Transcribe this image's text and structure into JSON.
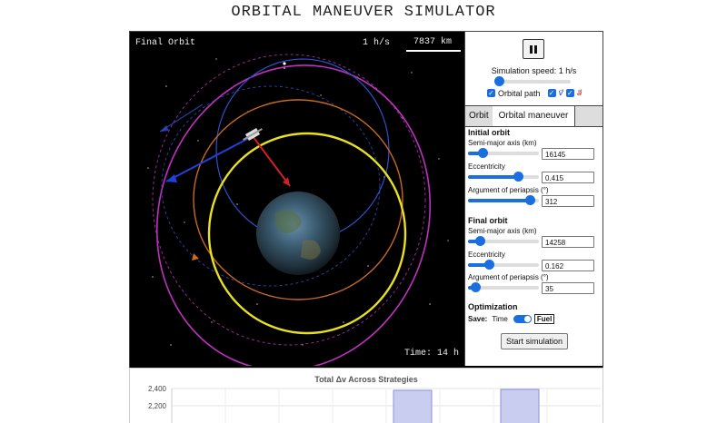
{
  "page": {
    "title": "ORBITAL MANEUVER SIMULATOR"
  },
  "canvas": {
    "label": "Final Orbit",
    "speed": "1 h/s",
    "scale": "7837 km",
    "time": "Time: 14 h"
  },
  "controls": {
    "pause_icon": "pause-icon",
    "speed_label": "Simulation speed: 1 h/s",
    "speed_level": 0.04,
    "orbital_path_label": "Orbital path",
    "v_symbol": "v⃗",
    "a_symbol": "a⃗",
    "tabs": [
      "Orbit",
      "Orbital maneuver"
    ],
    "initial": {
      "heading": "Initial orbit",
      "sma_label": "Semi-major axis (km)",
      "sma_value": "16145",
      "sma_level": 0.2,
      "ecc_label": "Eccentricity",
      "ecc_value": "0.415",
      "ecc_level": 0.7,
      "arg_label": "Argument of periapsis (°)",
      "arg_value": "312",
      "arg_level": 0.87
    },
    "final": {
      "heading": "Final orbit",
      "sma_label": "Semi-major axis (km)",
      "sma_value": "14258",
      "sma_level": 0.17,
      "ecc_label": "Eccentricity",
      "ecc_value": "0.162",
      "ecc_level": 0.3,
      "arg_label": "Argument of periapsis (°)",
      "arg_value": "35",
      "arg_level": 0.1
    },
    "optimization": {
      "heading": "Optimization",
      "save_label": "Save:",
      "time_label": "Time",
      "fuel_label": "Fuel"
    },
    "start_label": "Start simulation"
  },
  "colors": {
    "accent": "#1a6fe0",
    "yellow_orbit": "#e8e020",
    "magenta_orbit": "#c030c0",
    "orange_orbit": "#c86a20",
    "blue_orbit": "#3050c8"
  },
  "chart_data": {
    "type": "bar",
    "title": "Total Δv Across Strategies",
    "yticks": [
      "2,400",
      "2,200"
    ],
    "ylim": [
      2100,
      2400
    ],
    "bars_visible": 2
  }
}
